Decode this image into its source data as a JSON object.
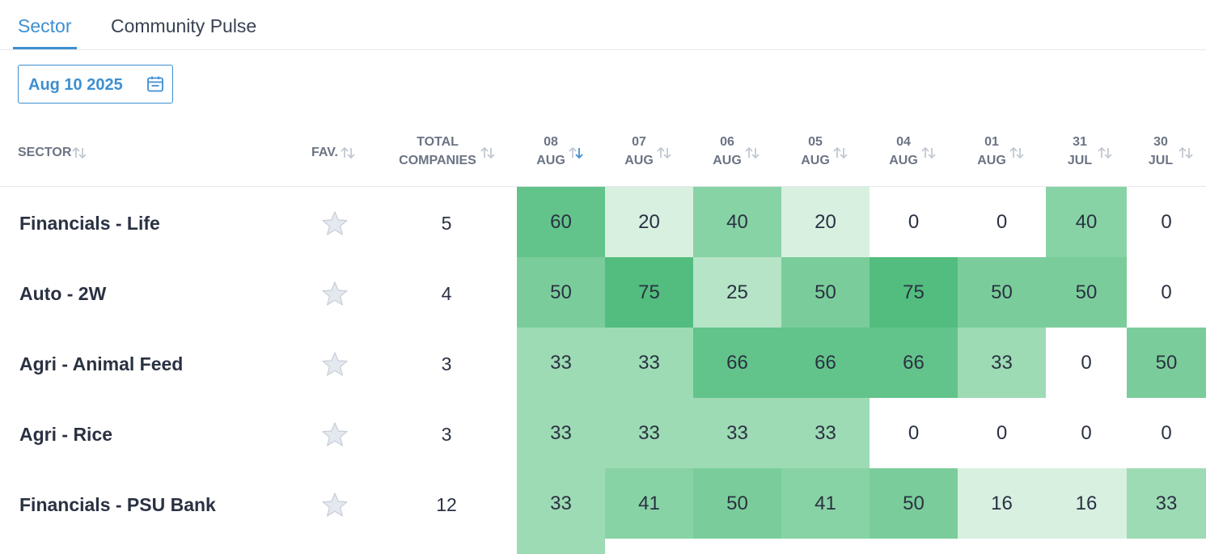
{
  "tabs": [
    {
      "label": "Sector",
      "active": true
    },
    {
      "label": "Community Pulse",
      "active": false
    }
  ],
  "date_picker": {
    "value": "Aug 10 2025",
    "icon": "calendar-icon"
  },
  "columns": {
    "sector": "SECTOR",
    "fav": "FAV.",
    "total_line1": "TOTAL",
    "total_line2": "COMPANIES",
    "dates": [
      {
        "day": "08",
        "month": "AUG",
        "active_sort": true
      },
      {
        "day": "07",
        "month": "AUG"
      },
      {
        "day": "06",
        "month": "AUG"
      },
      {
        "day": "05",
        "month": "AUG"
      },
      {
        "day": "04",
        "month": "AUG"
      },
      {
        "day": "01",
        "month": "AUG"
      },
      {
        "day": "31",
        "month": "JUL"
      },
      {
        "day": "30",
        "month": "JUL"
      }
    ]
  },
  "rows": [
    {
      "sector": "Financials - Life",
      "total": "5",
      "values": [
        60,
        20,
        40,
        20,
        0,
        0,
        40,
        0
      ]
    },
    {
      "sector": "Auto - 2W",
      "total": "4",
      "values": [
        50,
        75,
        25,
        50,
        75,
        50,
        50,
        0
      ]
    },
    {
      "sector": "Agri - Animal Feed",
      "total": "3",
      "values": [
        33,
        33,
        66,
        66,
        66,
        33,
        0,
        50
      ]
    },
    {
      "sector": "Agri - Rice",
      "total": "3",
      "values": [
        33,
        33,
        33,
        33,
        0,
        0,
        0,
        0
      ]
    },
    {
      "sector": "Financials - PSU Bank",
      "total": "12",
      "values": [
        33,
        41,
        50,
        41,
        50,
        16,
        16,
        33
      ]
    }
  ],
  "colors": {
    "accent": "#3d8fd1",
    "heat_scale": [
      {
        "min": 70,
        "color": "#52bd7e"
      },
      {
        "min": 60,
        "color": "#62c48a"
      },
      {
        "min": 50,
        "color": "#7acd9a"
      },
      {
        "min": 40,
        "color": "#88d3a5"
      },
      {
        "min": 30,
        "color": "#9ddbb4"
      },
      {
        "min": 21,
        "color": "#b5e4c6"
      },
      {
        "min": 1,
        "color": "#d8f0e0"
      },
      {
        "min": 0,
        "color": "#ffffff"
      }
    ]
  }
}
